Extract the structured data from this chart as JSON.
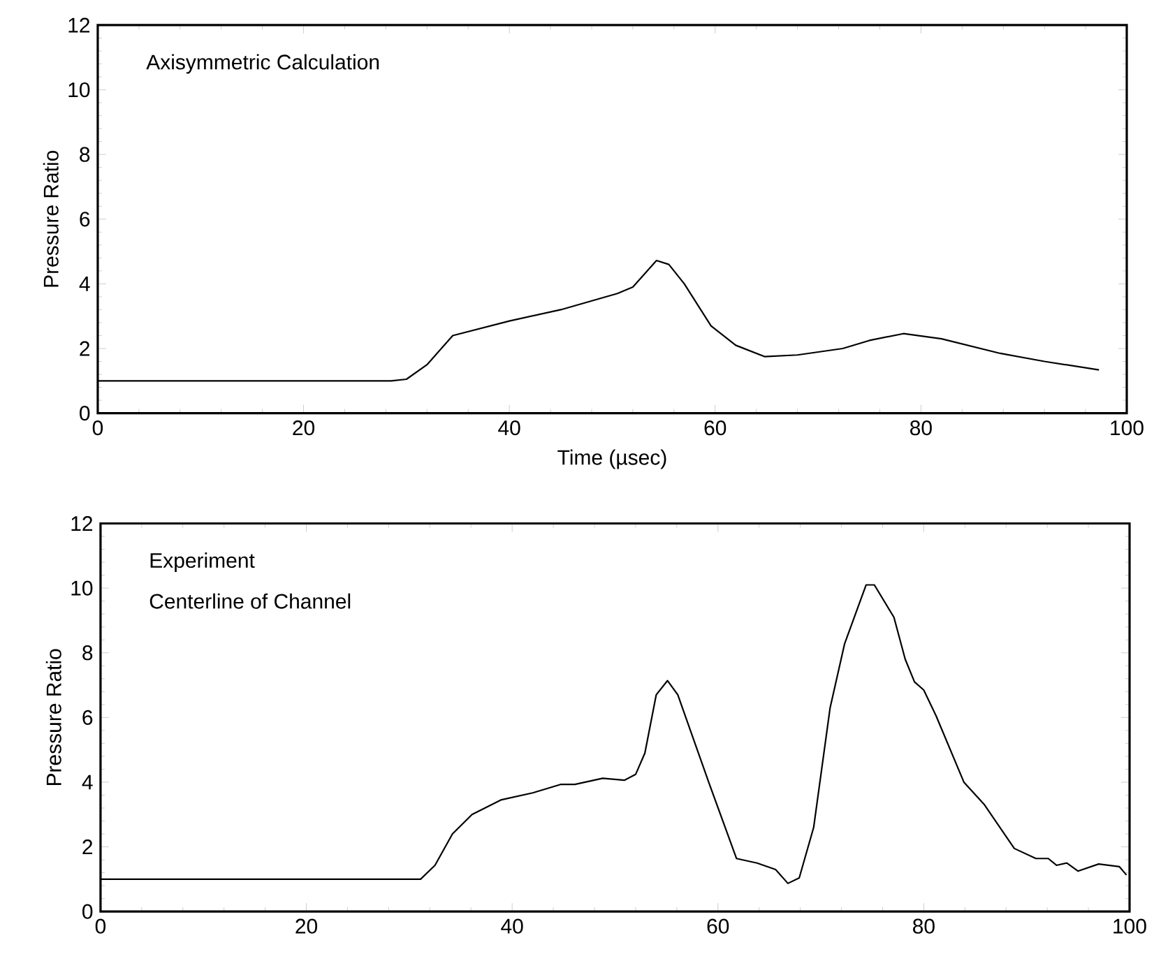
{
  "chart_data": [
    {
      "type": "line",
      "xlabel": "Time (µsec)",
      "ylabel": "Pressure Ratio",
      "annotations": [
        "Axisymmetric Calculation"
      ],
      "xlim": [
        0,
        100
      ],
      "ylim": [
        0,
        12
      ],
      "xticks": [
        0,
        20,
        40,
        60,
        80,
        100
      ],
      "yticks": [
        0,
        2,
        4,
        6,
        8,
        10,
        12
      ],
      "marker": "none",
      "line_style": "solid",
      "series": [
        {
          "color": "#000000",
          "x": [
            0,
            28.5,
            30,
            32,
            34.5,
            40,
            45,
            50.5,
            52,
            54.3,
            55.5,
            57,
            59.6,
            62,
            64.8,
            68,
            72.4,
            75,
            78.3,
            82,
            87.7,
            92,
            97.3
          ],
          "values": [
            1,
            1,
            1.05,
            1.5,
            2.4,
            2.85,
            3.2,
            3.7,
            3.9,
            4.72,
            4.6,
            4.0,
            2.7,
            2.1,
            1.75,
            1.8,
            2.0,
            2.25,
            2.46,
            2.3,
            1.85,
            1.6,
            1.34
          ]
        }
      ]
    },
    {
      "type": "line",
      "ylabel": "Pressure Ratio",
      "annotations": [
        "Experiment",
        "Centerline of Channel"
      ],
      "xlim": [
        0,
        100
      ],
      "ylim": [
        0,
        12
      ],
      "xticks": [
        0,
        20,
        40,
        60,
        80,
        100
      ],
      "yticks": [
        0,
        2,
        4,
        6,
        8,
        10,
        12
      ],
      "marker": "none",
      "line_style": "solid",
      "series": [
        {
          "color": "#000000",
          "x": [
            0,
            10,
            20,
            31.1,
            32.5,
            34.2,
            36.1,
            38.9,
            42.0,
            44.7,
            46.1,
            48.8,
            50.9,
            52.0,
            52.9,
            54.0,
            55.1,
            56.1,
            59.1,
            61.8,
            63.8,
            65.6,
            66.8,
            67.9,
            69.3,
            70.9,
            72.3,
            74.4,
            75.2,
            77.1,
            78.2,
            79.1,
            80.0,
            81.2,
            83.9,
            85.9,
            88.8,
            90.9,
            92.1,
            92.9,
            93.9,
            95.0,
            97.0,
            99.0,
            99.7
          ],
          "values": [
            1.0,
            1.0,
            1.0,
            1.0,
            1.43,
            2.4,
            3.0,
            3.45,
            3.67,
            3.93,
            3.93,
            4.12,
            4.06,
            4.24,
            4.9,
            6.7,
            7.14,
            6.7,
            4.0,
            1.64,
            1.5,
            1.3,
            0.87,
            1.04,
            2.6,
            6.3,
            8.27,
            10.1,
            10.1,
            9.1,
            7.8,
            7.1,
            6.85,
            6.05,
            4.0,
            3.3,
            1.95,
            1.64,
            1.64,
            1.43,
            1.5,
            1.25,
            1.47,
            1.39,
            1.13
          ]
        }
      ]
    }
  ]
}
